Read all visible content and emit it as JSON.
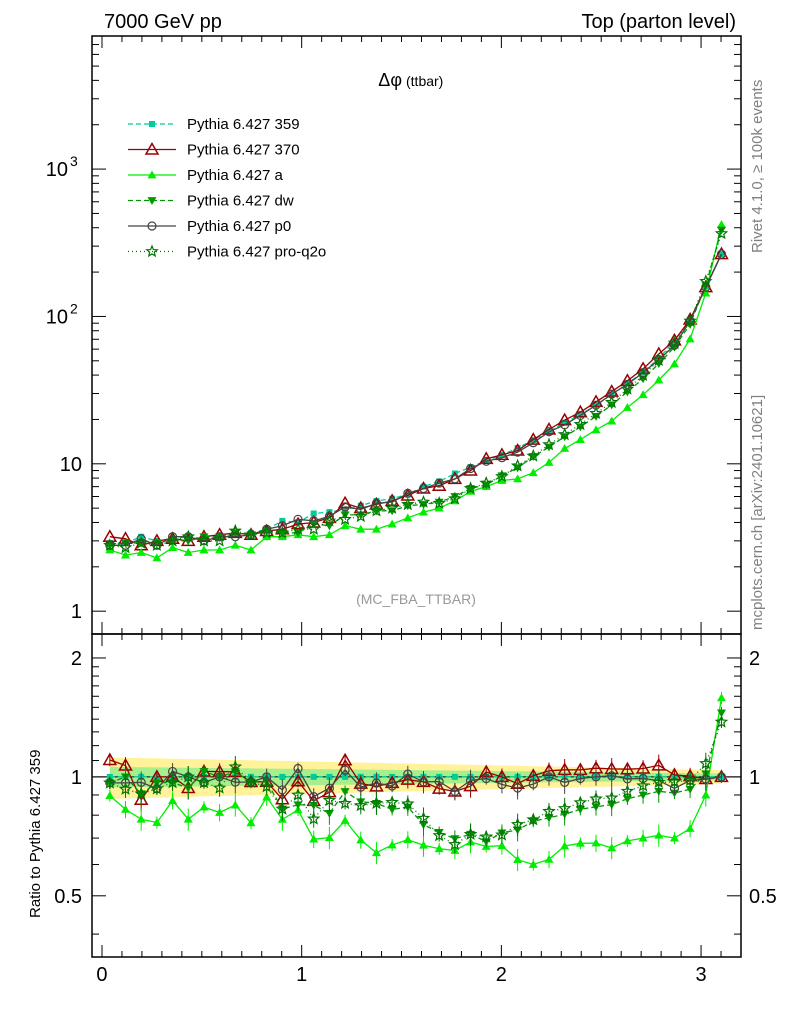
{
  "header": {
    "left": "7000 GeV pp",
    "right": "Top (parton level)"
  },
  "side_labels": {
    "rivet": "Rivet 4.1.0, ≥ 100k events",
    "mcplots": "mcplots.cern.ch [arXiv:2401.10621]"
  },
  "chart_data": {
    "type": "line",
    "title": "Δφ",
    "title_suffix": "(ttbar)",
    "analysis_label": "(MC_FBA_TTBAR)",
    "xlabel": "",
    "ylabel_ratio": "Ratio to Pythia 6.427 359",
    "xlim": [
      -0.05,
      3.2
    ],
    "ylim_main": [
      0.7,
      8000
    ],
    "yscale_main": "log",
    "ylim_ratio": [
      0.35,
      2.3
    ],
    "yscale_ratio": "log",
    "x_ticks": [
      "0",
      "1",
      "2",
      "3"
    ],
    "y_ticks_main": [
      "1",
      "10",
      "10^2",
      "10^3"
    ],
    "y_ticks_ratio": [
      "0.5",
      "1",
      "2"
    ],
    "x": [
      0.0393,
      0.1178,
      0.1963,
      0.2749,
      0.3534,
      0.432,
      0.5105,
      0.589,
      0.6676,
      0.7461,
      0.8247,
      0.9032,
      0.9817,
      1.0603,
      1.1388,
      1.2174,
      1.2959,
      1.3744,
      1.453,
      1.5315,
      1.6101,
      1.6886,
      1.7671,
      1.8457,
      1.9242,
      2.0028,
      2.0813,
      2.1598,
      2.2384,
      2.3169,
      2.3955,
      2.474,
      2.5525,
      2.6311,
      2.7096,
      2.7882,
      2.8667,
      2.9452,
      3.0238,
      3.1023
    ],
    "reference_band": {
      "yellow_halfwidth_start": 0.12,
      "yellow_halfwidth_end": 0.04,
      "green_halfwidth_start": 0.06,
      "green_halfwidth_end": 0.02
    },
    "series": [
      {
        "name": "Pythia 6.427 359",
        "color": "#00cc99",
        "marker": "square",
        "dash": "5,3",
        "legend_line": "dashed",
        "values": [
          2.9,
          2.9,
          3.2,
          3.0,
          3.1,
          3.2,
          3.1,
          3.2,
          3.3,
          3.4,
          3.6,
          4.1,
          4.0,
          4.6,
          4.7,
          4.9,
          5.2,
          5.6,
          5.8,
          6.2,
          7.0,
          7.6,
          8.6,
          9.5,
          10.5,
          11.5,
          12.8,
          14.5,
          16.5,
          19.0,
          21.5,
          25.0,
          29.5,
          35.0,
          42.0,
          52.0,
          68.0,
          95.0,
          160.0,
          265.0
        ]
      },
      {
        "name": "Pythia 6.427 370",
        "color": "#990000",
        "marker": "triangle-open",
        "dash": "",
        "legend_line": "solid",
        "values": [
          3.2,
          3.1,
          2.8,
          3.0,
          3.1,
          3.0,
          3.2,
          3.3,
          3.4,
          3.3,
          3.5,
          3.6,
          3.9,
          4.0,
          4.3,
          5.4,
          5.0,
          5.3,
          5.6,
          6.1,
          6.8,
          7.1,
          7.9,
          9.0,
          10.8,
          11.5,
          12.3,
          14.6,
          17.1,
          19.8,
          22.4,
          26.3,
          30.9,
          36.6,
          44.1,
          55.6,
          68.8,
          95.4,
          158.0,
          265.0
        ]
      },
      {
        "name": "Pythia 6.427 a",
        "color": "#00ee00",
        "marker": "triangle",
        "dash": "",
        "legend_line": "solid",
        "values": [
          2.6,
          2.4,
          2.5,
          2.3,
          2.7,
          2.5,
          2.6,
          2.6,
          2.8,
          2.6,
          3.2,
          3.2,
          3.3,
          3.2,
          3.3,
          3.8,
          3.6,
          3.6,
          3.9,
          4.3,
          4.7,
          5.0,
          5.6,
          6.5,
          7.0,
          7.7,
          7.9,
          8.7,
          10.2,
          12.7,
          14.6,
          17.0,
          19.5,
          24.1,
          29.4,
          37.0,
          47.6,
          70.3,
          144.0,
          420.0
        ]
      },
      {
        "name": "Pythia 6.427 dw",
        "color": "#009900",
        "marker": "triangle-down",
        "dash": "5,3",
        "legend_line": "dashed",
        "values": [
          2.8,
          2.9,
          2.9,
          2.9,
          3.0,
          3.0,
          3.2,
          3.2,
          3.4,
          3.3,
          3.5,
          3.4,
          3.4,
          3.9,
          3.8,
          4.5,
          4.5,
          4.8,
          4.8,
          5.2,
          5.3,
          5.5,
          6.0,
          6.8,
          7.2,
          8.3,
          9.4,
          11.2,
          13.0,
          15.3,
          17.8,
          21.0,
          25.1,
          30.8,
          37.8,
          47.8,
          61.9,
          88.4,
          163.0,
          385.0
        ]
      },
      {
        "name": "Pythia 6.427 p0",
        "color": "#444444",
        "marker": "circle-open",
        "dash": "",
        "legend_line": "solid",
        "values": [
          2.8,
          2.8,
          3.1,
          2.8,
          3.2,
          3.2,
          3.0,
          3.2,
          3.2,
          3.3,
          3.6,
          3.8,
          4.2,
          4.1,
          4.4,
          5.1,
          4.9,
          5.4,
          5.5,
          6.3,
          6.8,
          7.4,
          7.9,
          9.3,
          10.4,
          11.0,
          12.0,
          13.9,
          16.5,
          18.4,
          21.3,
          25.0,
          29.7,
          34.6,
          41.6,
          50.9,
          63.6,
          93.1,
          158.0,
          265.0
        ]
      },
      {
        "name": "Pythia 6.427 pro-q2o",
        "color": "#007700",
        "marker": "star-open",
        "dash": "1,3",
        "legend_line": "dotted",
        "values": [
          2.8,
          2.7,
          2.9,
          2.8,
          3.0,
          3.2,
          3.0,
          3.0,
          3.5,
          3.3,
          3.4,
          3.4,
          3.6,
          3.6,
          4.1,
          4.2,
          4.4,
          4.8,
          5.0,
          5.3,
          5.5,
          5.4,
          5.8,
          6.8,
          7.4,
          8.2,
          9.7,
          11.3,
          13.5,
          15.8,
          18.5,
          22.0,
          26.1,
          32.2,
          39.9,
          50.4,
          66.0,
          93.1,
          173.0,
          365.0
        ]
      }
    ]
  }
}
